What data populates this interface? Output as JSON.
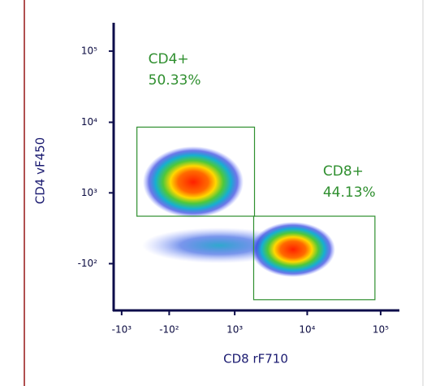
{
  "chart_data": {
    "type": "density",
    "x_label": "CD8 rF710",
    "y_label": "CD4 vF450",
    "scale": "biexponential",
    "xlim": [
      -1300,
      180000
    ],
    "ylim": [
      -900,
      250000
    ],
    "xticks": [
      {
        "value": -1000,
        "label": "-10³"
      },
      {
        "value": -100,
        "label": "-10²"
      },
      {
        "value": 1000,
        "label": "10³"
      },
      {
        "value": 10000,
        "label": "10⁴"
      },
      {
        "value": 100000,
        "label": "10⁵"
      }
    ],
    "yticks": [
      {
        "value": -100,
        "label": "-10²"
      },
      {
        "value": 1000,
        "label": "10³"
      },
      {
        "value": 10000,
        "label": "10⁴"
      },
      {
        "value": 100000,
        "label": "10⁵"
      }
    ],
    "axis_color": "#0c0c4a",
    "gate_color": "#2f8f2f",
    "gates": [
      {
        "name": "CD4+",
        "percent_label": "50.33%",
        "x": [
          -590,
          1900
        ],
        "y": [
          436,
          8550
        ]
      },
      {
        "name": "CD8+",
        "percent_label": "44.13%",
        "x": [
          1850,
          83600
        ],
        "y": [
          -620,
          436
        ]
      }
    ]
  }
}
